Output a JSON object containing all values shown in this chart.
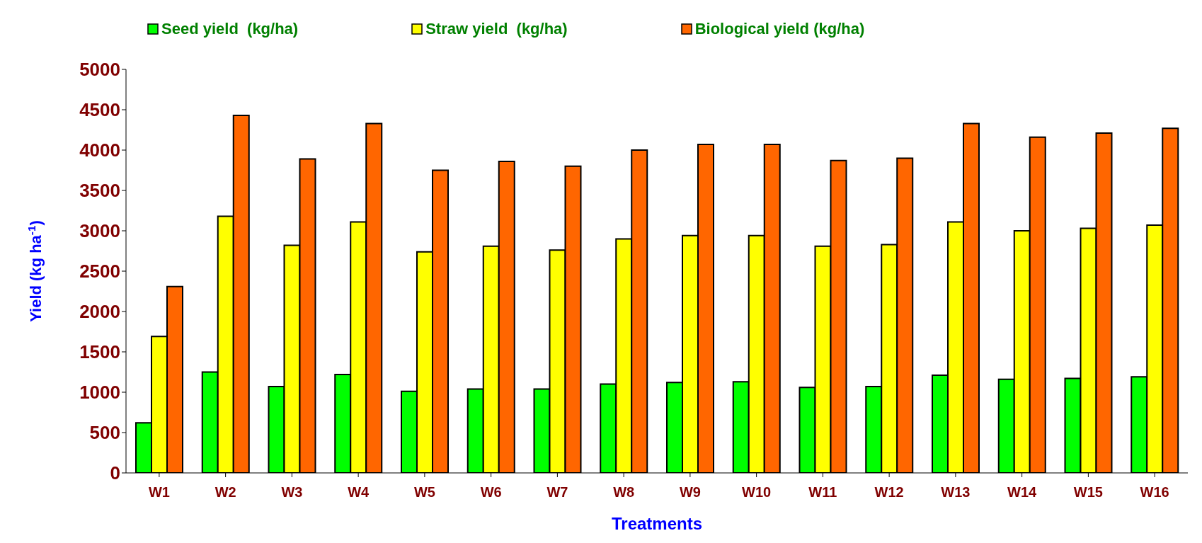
{
  "chart_data": {
    "type": "bar",
    "xlabel": "Treatments",
    "ylabel": "Yield (kg ha$^{-1}$)",
    "categories": [
      "W1",
      "W2",
      "W3",
      "W4",
      "W5",
      "W6",
      "W7",
      "W8",
      "W9",
      "W10",
      "W11",
      "W12",
      "W13",
      "W14",
      "W15",
      "W16"
    ],
    "series": [
      {
        "name": "Seed yield  (kg/ha)",
        "color": "#00ff00",
        "values": [
          620,
          1250,
          1070,
          1220,
          1010,
          1040,
          1040,
          1100,
          1120,
          1130,
          1060,
          1070,
          1210,
          1160,
          1170,
          1190
        ]
      },
      {
        "name": "Straw yield  (kg/ha)",
        "color": "#ffff00",
        "values": [
          1690,
          3180,
          2820,
          3110,
          2740,
          2810,
          2760,
          2900,
          2940,
          2940,
          2810,
          2830,
          3110,
          3000,
          3030,
          3070
        ]
      },
      {
        "name": "Biological yield (kg/ha)",
        "color": "#ff6600",
        "values": [
          2310,
          4430,
          3890,
          4330,
          3750,
          3860,
          3800,
          4000,
          4070,
          4070,
          3870,
          3900,
          4330,
          4160,
          4210,
          4270
        ]
      }
    ],
    "ylim": [
      0,
      5000
    ],
    "yticks": [
      0,
      500,
      1000,
      1500,
      2000,
      2500,
      3000,
      3500,
      4000,
      4500,
      5000
    ],
    "grid": false,
    "legend": "top"
  }
}
